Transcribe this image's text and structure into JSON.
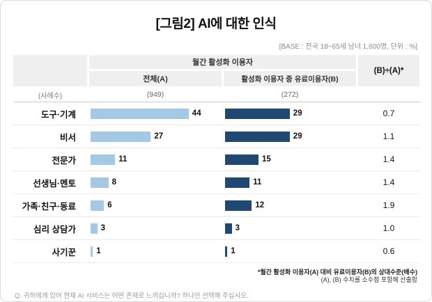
{
  "title": "[그림2] AI에 대한 인식",
  "base_note": "[BASE : 전국 18~65세 남녀 1,600명, 단위 : %]",
  "header": {
    "group": "월간 활성화 이용자",
    "col_a": "전체(A)",
    "col_b": "활성화 이용자 중 유료이용자(B)",
    "ratio": "(B)÷(A)*",
    "cases_label": "(사례수)",
    "cases_a": "(949)",
    "cases_b": "(272)"
  },
  "colors": {
    "bar_a": "#a5c8e4",
    "bar_b": "#1f4873",
    "header_bg": "#efefef"
  },
  "chart_data": {
    "type": "bar",
    "title": "[그림2] AI에 대한 인식",
    "unit": "%",
    "xlim": [
      0,
      50
    ],
    "legend_position": "column-headers",
    "grid": false,
    "categories": [
      "도구·기계",
      "비서",
      "전문가",
      "선생님·멘토",
      "가족·친구·동료",
      "심리 상담가",
      "사기꾼"
    ],
    "series": [
      {
        "name": "전체(A)",
        "base": 949,
        "values": [
          44,
          27,
          11,
          8,
          6,
          3,
          1
        ]
      },
      {
        "name": "활성화 이용자 중 유료이용자(B)",
        "base": 272,
        "values": [
          29,
          29,
          15,
          11,
          12,
          3,
          1
        ]
      }
    ],
    "ratios_b_div_a": [
      0.7,
      1.1,
      1.4,
      1.4,
      1.9,
      1.0,
      0.6
    ]
  },
  "footnotes": {
    "note1": "*월간 활성화 이용자(A) 대비 유료이용자(B)의 상대수준(배수)",
    "note2": "(A), (B) 수치를 소수점 포함해 산출함",
    "question": "Q. 귀하에게 있어 현재 AI 서비스는 어떤 존재로 느끼십니까? 하나만 선택해 주십시오."
  }
}
